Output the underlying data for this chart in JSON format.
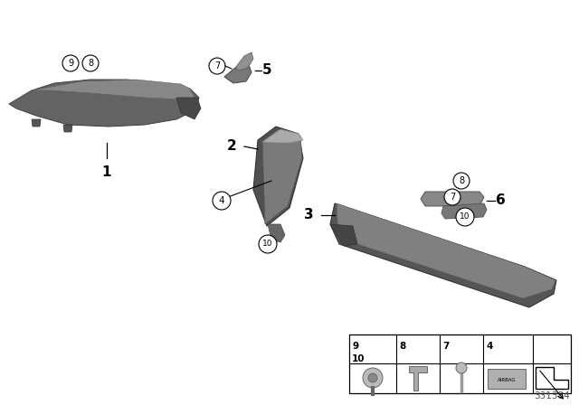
{
  "bg_color": "#ffffff",
  "diagram_number": "331384",
  "label_color": "#000000",
  "part_dark": "#606060",
  "part_mid": "#888888",
  "part_light": "#aaaaaa",
  "part_lighter": "#c0c0c0"
}
